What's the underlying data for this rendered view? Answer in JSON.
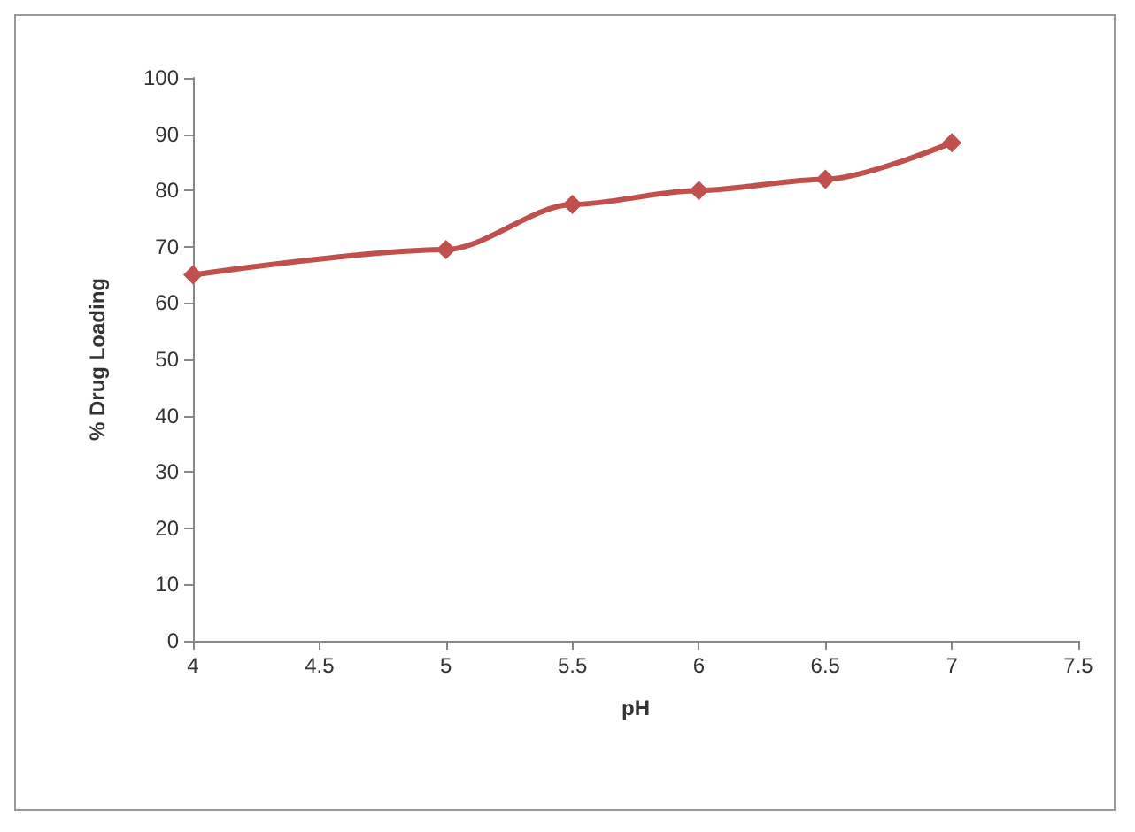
{
  "chart_data": {
    "type": "line",
    "xlabel": "pH",
    "ylabel": "% Drug Loading",
    "x": [
      4,
      5,
      5.5,
      6,
      6.5,
      7
    ],
    "series": [
      {
        "color": "#c0504d",
        "values": [
          65,
          69.5,
          77.5,
          80,
          82,
          88.5
        ]
      }
    ],
    "xlim": [
      4,
      7.5
    ],
    "xticks": [
      4,
      4.5,
      5,
      5.5,
      6,
      6.5,
      7,
      7.5
    ],
    "ylim": [
      0,
      100
    ],
    "yticks": [
      0,
      10,
      20,
      30,
      40,
      50,
      60,
      70,
      80,
      90,
      100
    ],
    "grid": false,
    "marker": "diamond",
    "line_style": "solid"
  }
}
